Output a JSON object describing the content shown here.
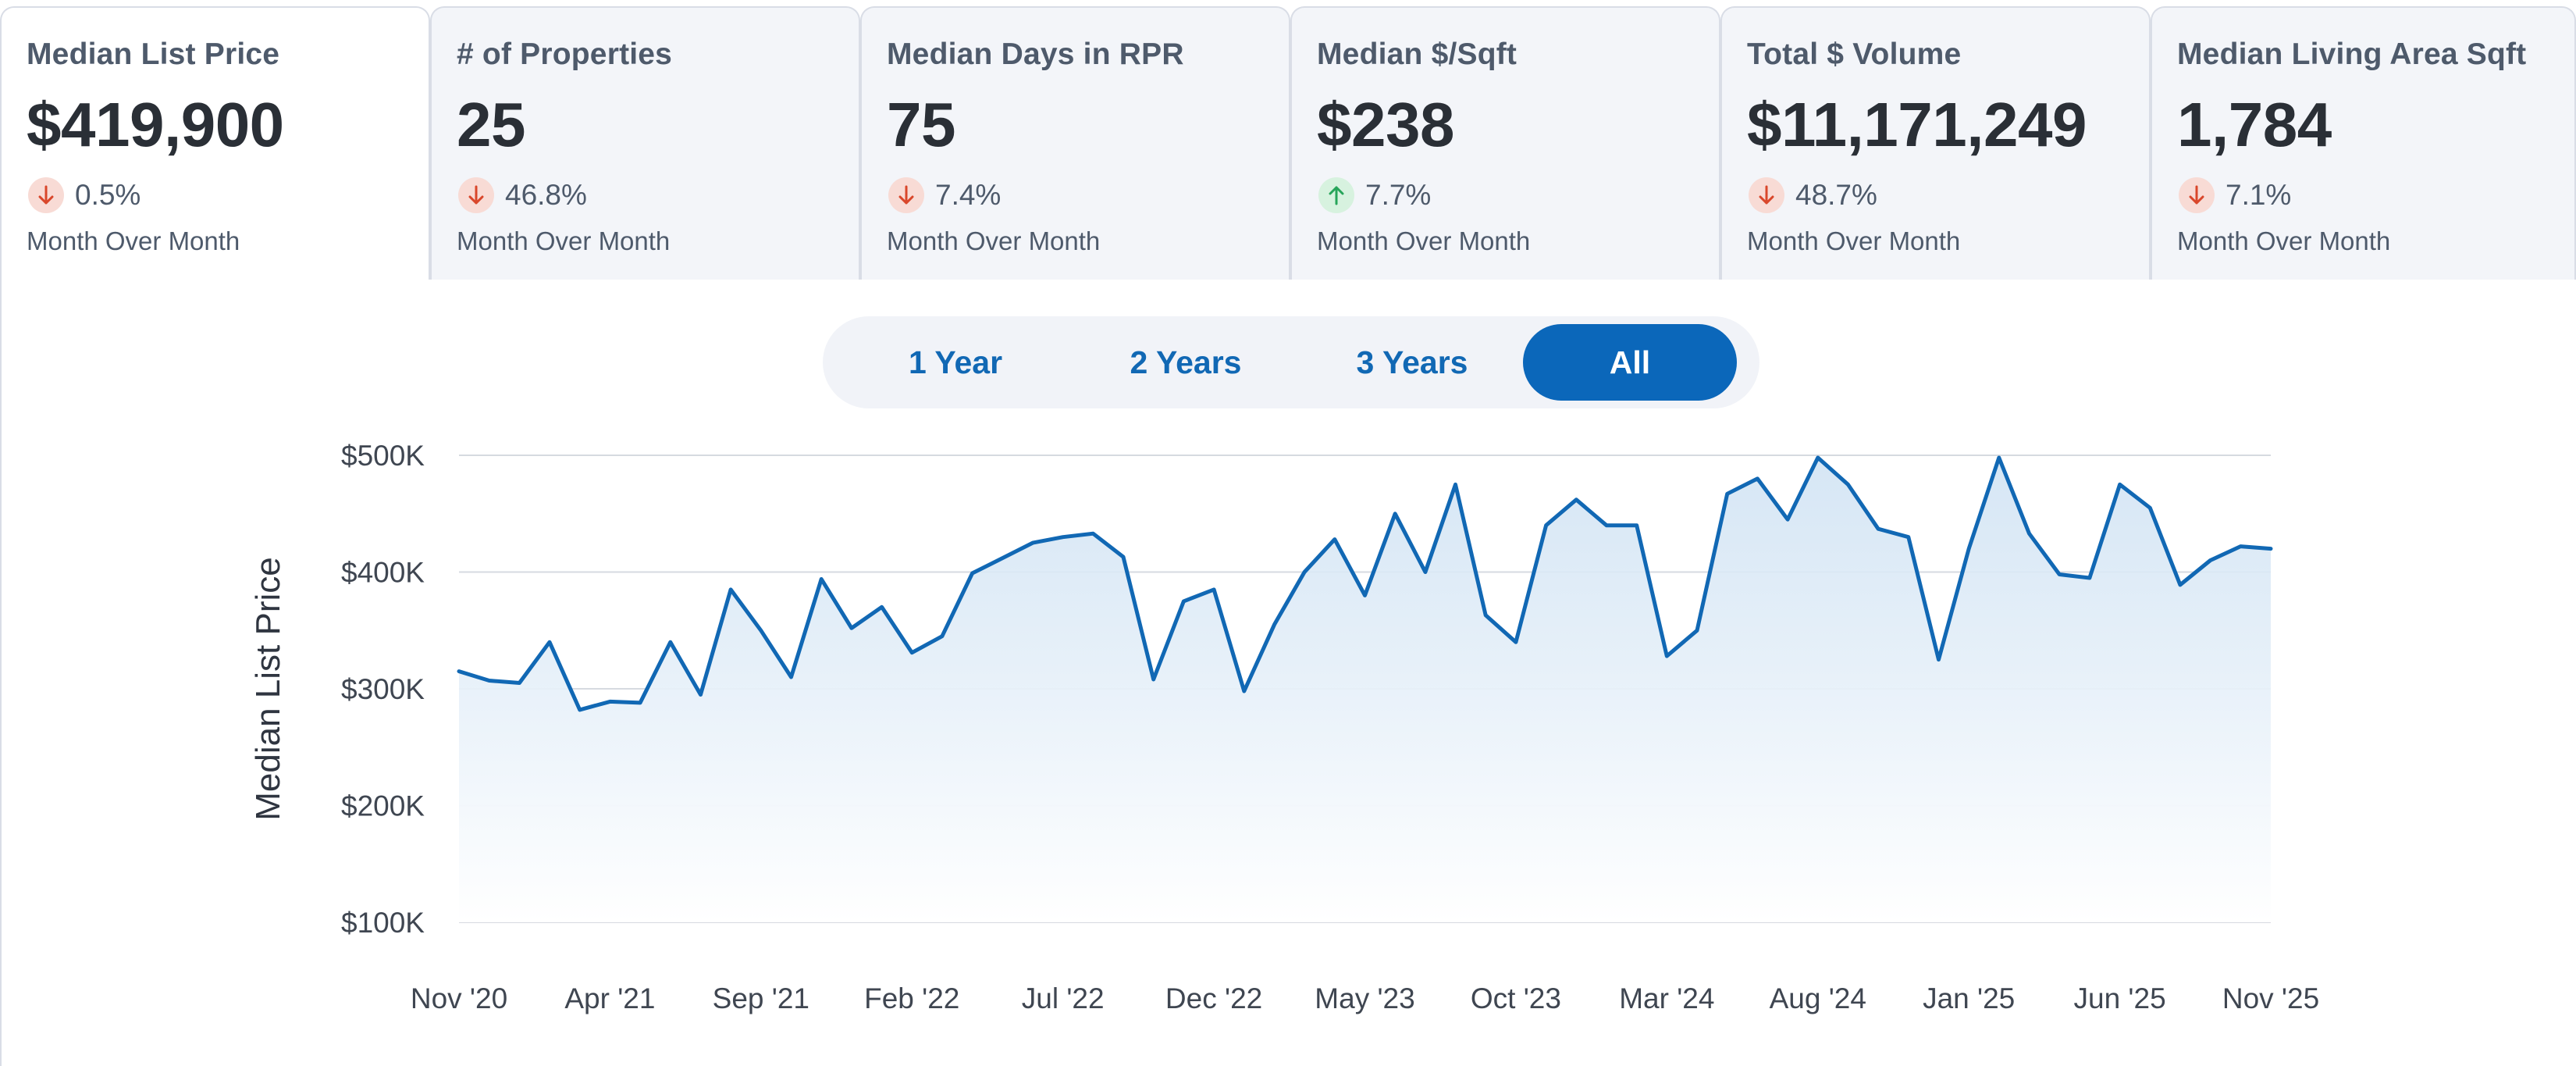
{
  "tabs": [
    {
      "label": "Median List Price",
      "value": "$419,900",
      "direction": "down",
      "change": "0.5%",
      "period": "Month Over Month",
      "active": true
    },
    {
      "label": "# of Properties",
      "value": "25",
      "direction": "down",
      "change": "46.8%",
      "period": "Month Over Month",
      "active": false
    },
    {
      "label": "Median Days in RPR",
      "value": "75",
      "direction": "down",
      "change": "7.4%",
      "period": "Month Over Month",
      "active": false
    },
    {
      "label": "Median $/Sqft",
      "value": "$238",
      "direction": "up",
      "change": "7.7%",
      "period": "Month Over Month",
      "active": false
    },
    {
      "label": "Total $ Volume",
      "value": "$11,171,249",
      "direction": "down",
      "change": "48.7%",
      "period": "Month Over Month",
      "active": false
    },
    {
      "label": "Median Living Area Sqft",
      "value": "1,784",
      "direction": "down",
      "change": "7.1%",
      "period": "Month Over Month",
      "active": false
    }
  ],
  "range_options": [
    {
      "label": "1 Year",
      "active": false
    },
    {
      "label": "2 Years",
      "active": false
    },
    {
      "label": "3 Years",
      "active": false
    },
    {
      "label": "All",
      "active": true
    }
  ],
  "colors": {
    "line": "#1168b4",
    "area_top": "#cfe2f3",
    "gridline": "#d6dae0",
    "down_arrow": "#d9472b",
    "up_arrow": "#27a55a"
  },
  "chart_data": {
    "type": "area",
    "ylabel": "Median List Price",
    "xlabel": "",
    "title": "",
    "ylim": [
      100000,
      500000
    ],
    "y_ticks": [
      100000,
      200000,
      300000,
      400000,
      500000
    ],
    "y_tick_labels": [
      "$100K",
      "$200K",
      "$300K",
      "$400K",
      "$500K"
    ],
    "x_tick_labels": [
      "Nov '20",
      "Apr '21",
      "Sep '21",
      "Feb '22",
      "Jul '22",
      "Dec '22",
      "May '23",
      "Oct '23",
      "Mar '24",
      "Aug '24",
      "Jan '25",
      "Jun '25",
      "Nov '25"
    ],
    "x_start": "2020-11",
    "x_end": "2025-11",
    "grid": true,
    "legend": "none",
    "series": [
      {
        "values": [
          315000,
          307000,
          305000,
          340000,
          282000,
          289000,
          288000,
          340000,
          295000,
          385000,
          350000,
          310000,
          394000,
          352000,
          370000,
          331000,
          345000,
          399000,
          412000,
          425000,
          430000,
          433000,
          413000,
          308000,
          375000,
          385000,
          298000,
          355000,
          400000,
          428000,
          380000,
          450000,
          400000,
          475000,
          363000,
          340000,
          440000,
          462000,
          440000,
          440000,
          328000,
          350000,
          467000,
          480000,
          445000,
          498000,
          475000,
          437000,
          430000,
          325000,
          420000,
          498000,
          433000,
          398000,
          395000,
          475000,
          455000,
          389000,
          410000,
          422000,
          420000
        ]
      }
    ]
  }
}
